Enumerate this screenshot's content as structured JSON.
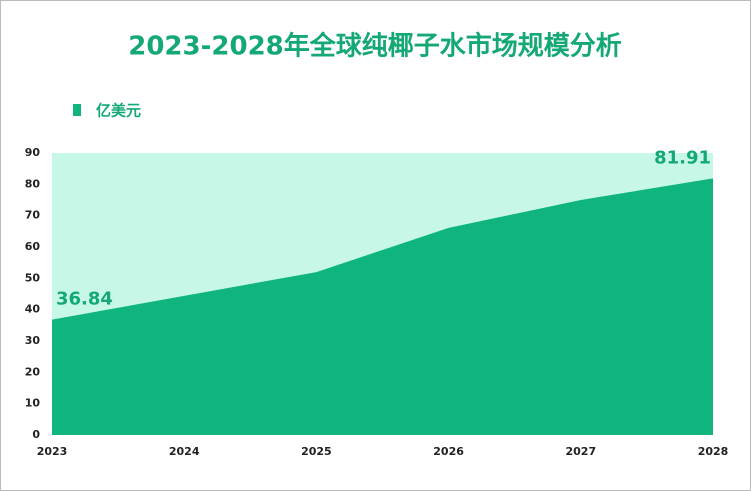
{
  "chart_data": {
    "type": "area",
    "title": "2023-2028年全球纯椰子水市场规模分析",
    "categories": [
      "2023",
      "2024",
      "2025",
      "2026",
      "2027",
      "2028"
    ],
    "series": [
      {
        "name": "亿美元",
        "color": "#10b47e",
        "values": [
          36.84,
          44.4,
          52,
          66.1,
          75,
          81.91
        ]
      }
    ],
    "labeled_points": [
      0,
      5
    ],
    "ylim": [
      0,
      90
    ],
    "yticks": [
      0,
      10,
      20,
      30,
      40,
      50,
      60,
      70,
      80,
      90
    ],
    "grid": false,
    "plot_background": "#c6f7e7",
    "legend": "top-left"
  }
}
